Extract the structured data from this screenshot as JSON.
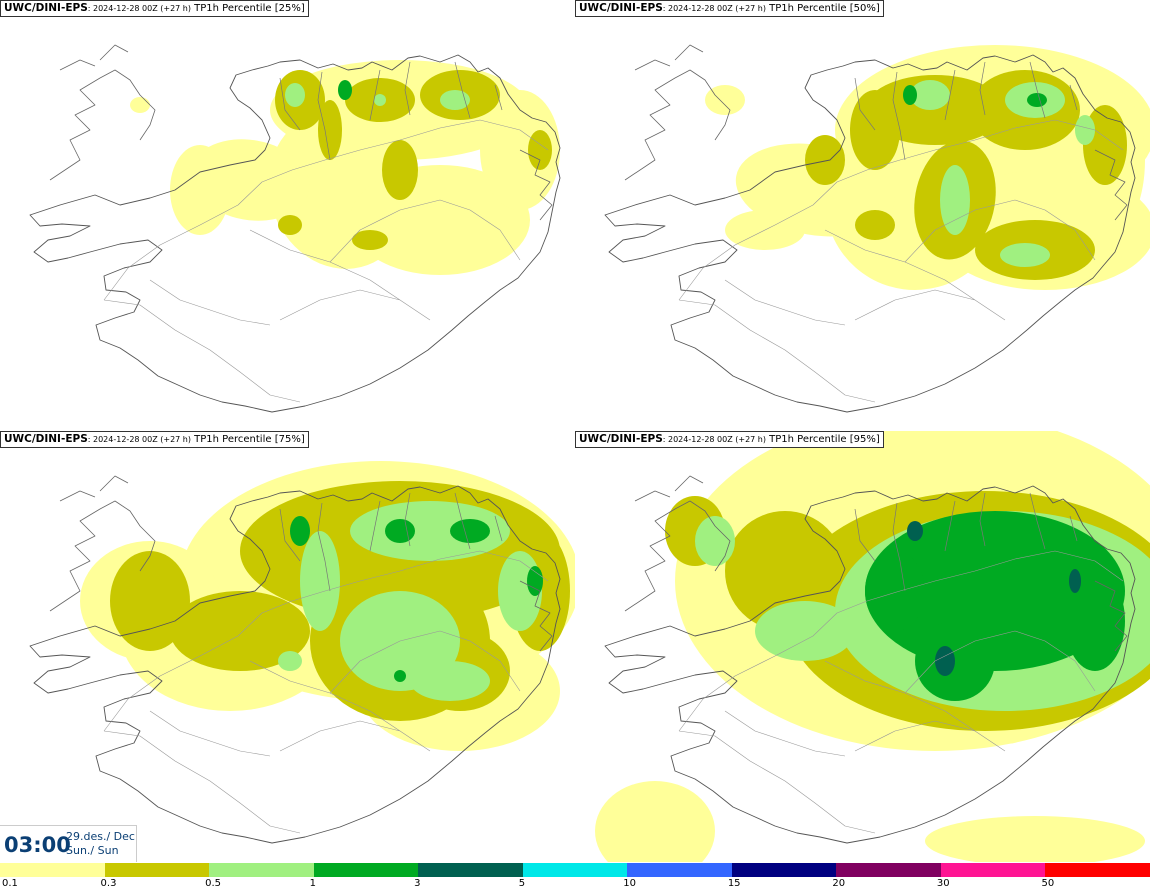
{
  "panels": [
    {
      "model": "UWC/DINI-EPS",
      "run": ": 2024-12-28 00Z (+27 h)",
      "param": " TP1h Percentile",
      "pct": "[25%]",
      "level": 0
    },
    {
      "model": "UWC/DINI-EPS",
      "run": ": 2024-12-28 00Z (+27 h)",
      "param": " TP1h Percentile",
      "pct": "[50%]",
      "level": 1
    },
    {
      "model": "UWC/DINI-EPS",
      "run": ": 2024-12-28 00Z (+27 h)",
      "param": " TP1h Percentile",
      "pct": "[75%]",
      "level": 2
    },
    {
      "model": "UWC/DINI-EPS",
      "run": ": 2024-12-28 00Z (+27 h)",
      "param": " TP1h Percentile",
      "pct": "[95%]",
      "level": 3
    }
  ],
  "time": {
    "clock": "03:00",
    "date": "29.des./ Dec",
    "day": "Sun./ Sun"
  },
  "legend": {
    "labels": [
      "0.1",
      "0.3",
      "0.5",
      "1",
      "3",
      "5",
      "10",
      "15",
      "20",
      "30",
      "50"
    ],
    "colors": [
      "#ffff99",
      "#c8c800",
      "#a0f080",
      "#00aa22",
      "#006050",
      "#00e8e8",
      "#3366ff",
      "#000080",
      "#800060",
      "#ff1493",
      "#ff0000"
    ]
  }
}
